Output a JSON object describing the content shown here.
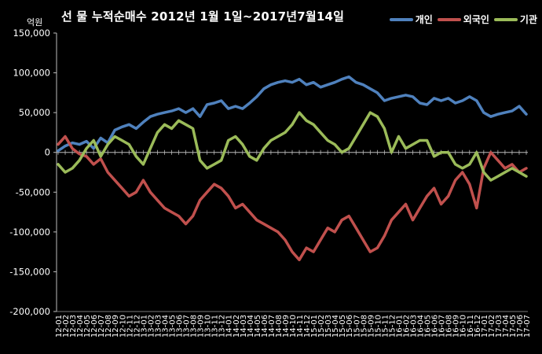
{
  "chart_data": {
    "type": "line",
    "title": "선 물 누적순매수 2012년 1월 1일~2017년7월14일",
    "ylabel": "억원",
    "ylim": [
      -200000,
      150000
    ],
    "yticks": [
      "150,000",
      "100,000",
      "50,000",
      "0",
      "-50,000",
      "-100,000",
      "-150,000",
      "-200,000"
    ],
    "ytick_values": [
      150000,
      100000,
      50000,
      0,
      -50000,
      -100000,
      -150000,
      -200000
    ],
    "categories": [
      "12-01",
      "12-02",
      "12-03",
      "12-04",
      "12-05",
      "12-06",
      "12-07",
      "12-08",
      "12-09",
      "12-10",
      "12-11",
      "12-12",
      "13-01",
      "13-02",
      "13-03",
      "13-04",
      "13-05",
      "13-06",
      "13-07",
      "13-08",
      "13-09",
      "13-10",
      "13-11",
      "13-12",
      "14-01",
      "14-02",
      "14-03",
      "14-04",
      "14-05",
      "14-06",
      "14-07",
      "14-08",
      "14-09",
      "14-10",
      "14-11",
      "14-12",
      "15-01",
      "15-02",
      "15-03",
      "15-04",
      "15-05",
      "15-06",
      "15-07",
      "15-08",
      "15-09",
      "15-10",
      "15-11",
      "15-12",
      "16-01",
      "16-02",
      "16-03",
      "16-04",
      "16-05",
      "16-06",
      "16-07",
      "16-08",
      "16-09",
      "16-10",
      "16-11",
      "16-12",
      "17-01",
      "17-02",
      "17-03",
      "17-04",
      "17-05",
      "17-06",
      "17-07"
    ],
    "legend_position": "top-right",
    "series": [
      {
        "name": "개인",
        "color": "#4F81BD",
        "values": [
          2000,
          8000,
          12000,
          10000,
          14000,
          5000,
          18000,
          12000,
          28000,
          32000,
          35000,
          30000,
          38000,
          45000,
          48000,
          50000,
          52000,
          55000,
          50000,
          55000,
          45000,
          60000,
          62000,
          65000,
          55000,
          58000,
          55000,
          62000,
          70000,
          80000,
          85000,
          88000,
          90000,
          88000,
          92000,
          85000,
          88000,
          82000,
          85000,
          88000,
          92000,
          95000,
          88000,
          85000,
          80000,
          75000,
          65000,
          68000,
          70000,
          72000,
          70000,
          62000,
          60000,
          68000,
          65000,
          68000,
          62000,
          65000,
          70000,
          65000,
          50000,
          45000,
          48000,
          50000,
          52000,
          58000,
          48000
        ]
      },
      {
        "name": "외국인",
        "color": "#C0504D",
        "values": [
          10000,
          20000,
          5000,
          -2000,
          -5000,
          -15000,
          -8000,
          -25000,
          -35000,
          -45000,
          -55000,
          -50000,
          -35000,
          -50000,
          -60000,
          -70000,
          -75000,
          -80000,
          -90000,
          -80000,
          -60000,
          -50000,
          -40000,
          -45000,
          -55000,
          -70000,
          -65000,
          -75000,
          -85000,
          -90000,
          -95000,
          -100000,
          -110000,
          -125000,
          -135000,
          -120000,
          -125000,
          -110000,
          -95000,
          -100000,
          -85000,
          -80000,
          -95000,
          -110000,
          -125000,
          -120000,
          -105000,
          -85000,
          -75000,
          -65000,
          -85000,
          -70000,
          -55000,
          -45000,
          -65000,
          -55000,
          -35000,
          -25000,
          -40000,
          -70000,
          -20000,
          0,
          -10000,
          -20000,
          -15000,
          -25000,
          -20000
        ]
      },
      {
        "name": "기관",
        "color": "#9BBB59",
        "values": [
          -15000,
          -25000,
          -20000,
          -10000,
          5000,
          15000,
          -5000,
          10000,
          20000,
          15000,
          10000,
          -5000,
          -15000,
          5000,
          25000,
          35000,
          30000,
          40000,
          35000,
          30000,
          -10000,
          -20000,
          -15000,
          -10000,
          15000,
          20000,
          10000,
          -5000,
          -10000,
          5000,
          15000,
          20000,
          25000,
          35000,
          50000,
          40000,
          35000,
          25000,
          15000,
          10000,
          0,
          5000,
          20000,
          35000,
          50000,
          45000,
          30000,
          0,
          20000,
          5000,
          10000,
          15000,
          15000,
          -5000,
          0,
          0,
          -15000,
          -20000,
          -15000,
          0,
          -25000,
          -35000,
          -30000,
          -25000,
          -20000,
          -25000,
          -30000
        ]
      }
    ]
  }
}
